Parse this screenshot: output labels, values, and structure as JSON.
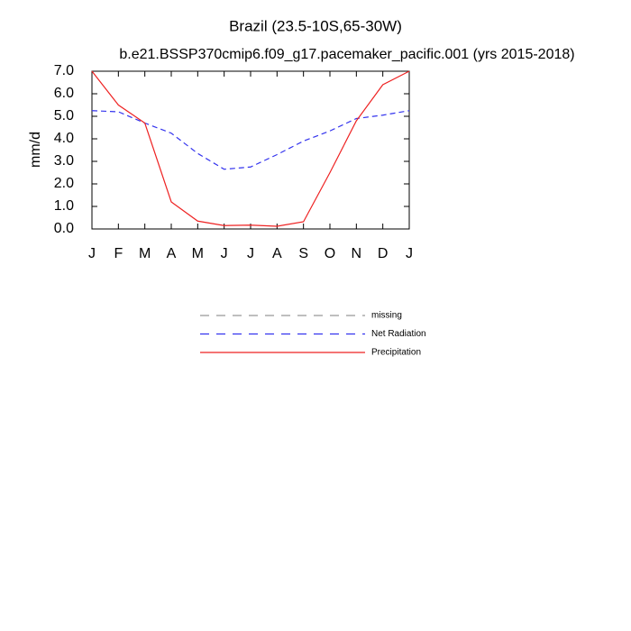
{
  "chart_data": {
    "type": "line",
    "title": "Brazil (23.5-10S,65-30W)",
    "subtitle": "b.e21.BSSP370cmip6.f09_g17.pacemaker_pacific.001 (yrs 2015-2018)",
    "y_label": "mm/d",
    "categories": [
      "J",
      "F",
      "M",
      "A",
      "M",
      "J",
      "J",
      "A",
      "S",
      "O",
      "N",
      "D",
      "J"
    ],
    "ylim": [
      0,
      7
    ],
    "yticks": [
      {
        "value": 0,
        "label": "0.0"
      },
      {
        "value": 1,
        "label": "1.0"
      },
      {
        "value": 2,
        "label": "2.0"
      },
      {
        "value": 3,
        "label": "3.0"
      },
      {
        "value": 4,
        "label": "4.0"
      },
      {
        "value": 5,
        "label": "5.0"
      },
      {
        "value": 6,
        "label": "6.0"
      },
      {
        "value": 7,
        "label": "7.0"
      }
    ],
    "series": [
      {
        "name": "missing",
        "color": "#999999",
        "dashed": true,
        "values": [
          null,
          null,
          null,
          null,
          null,
          null,
          null,
          null,
          null,
          null,
          null,
          null,
          null
        ]
      },
      {
        "name": "Net Radiation",
        "color": "#3333ee",
        "dashed": true,
        "values": [
          5.25,
          5.2,
          4.7,
          4.25,
          3.35,
          2.65,
          2.75,
          3.3,
          3.9,
          4.35,
          4.9,
          5.05,
          5.25
        ]
      },
      {
        "name": "Precipitation",
        "color": "#ee2222",
        "dashed": false,
        "values": [
          7.0,
          5.5,
          4.7,
          1.2,
          0.35,
          0.15,
          0.17,
          0.12,
          0.32,
          2.5,
          4.8,
          6.4,
          7.0
        ]
      }
    ]
  }
}
